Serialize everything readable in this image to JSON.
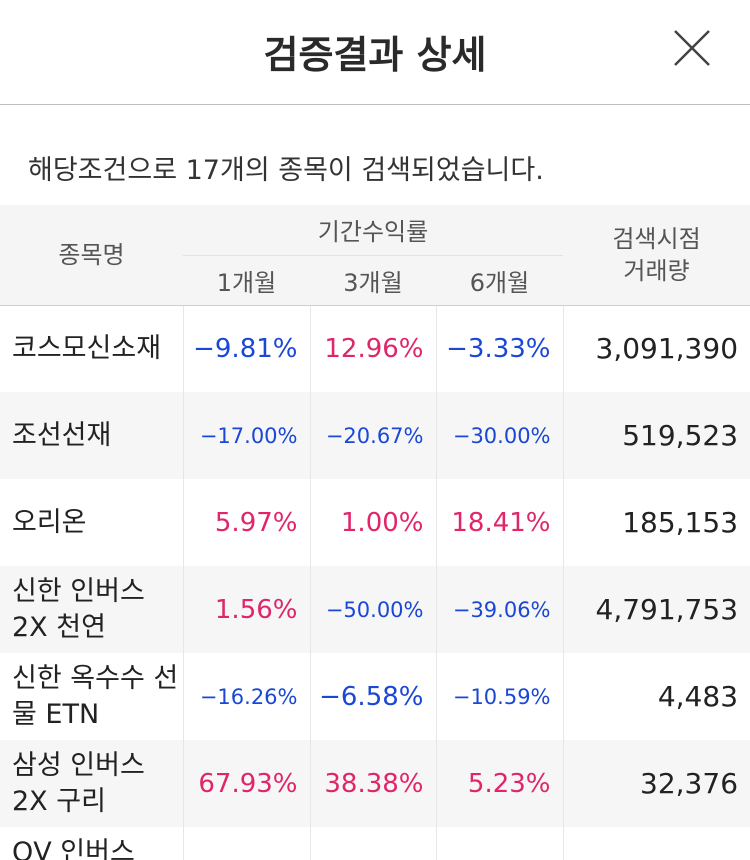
{
  "header": {
    "title": "검증결과 상세"
  },
  "summary": "해당조건으로 17개의 종목이 검색되었습니다.",
  "columns": {
    "name": "종목명",
    "period_group": "기간수익률",
    "m1": "1개월",
    "m3": "3개월",
    "m6": "6개월",
    "volume": "검색시점\n거래량"
  },
  "rows": [
    {
      "name": "코스모신소재",
      "m1": "−9.81%",
      "m3": "12.96%",
      "m6": "−3.33%",
      "volume": "3,091,390"
    },
    {
      "name": "조선선재",
      "m1": "−17.00%",
      "m3": "−20.67%",
      "m6": "−30.00%",
      "volume": "519,523"
    },
    {
      "name": "오리온",
      "m1": "5.97%",
      "m3": "1.00%",
      "m6": "18.41%",
      "volume": "185,153"
    },
    {
      "name": "신한 인버스 2X 천연",
      "m1": "1.56%",
      "m3": "−50.00%",
      "m6": "−39.06%",
      "volume": "4,791,753"
    },
    {
      "name": "신한 옥수수 선물 ETN",
      "m1": "−16.26%",
      "m3": "−6.58%",
      "m6": "−10.59%",
      "volume": "4,483"
    },
    {
      "name": "삼성 인버스 2X 구리",
      "m1": "67.93%",
      "m3": "38.38%",
      "m6": "5.23%",
      "volume": "32,376"
    },
    {
      "name": "QV 인버스",
      "m1": "",
      "m3": "",
      "m6": "",
      "volume": ""
    }
  ],
  "colors": {
    "negative": "#1a47d6",
    "positive": "#e0256a"
  },
  "icons": {
    "close": "close-icon"
  }
}
